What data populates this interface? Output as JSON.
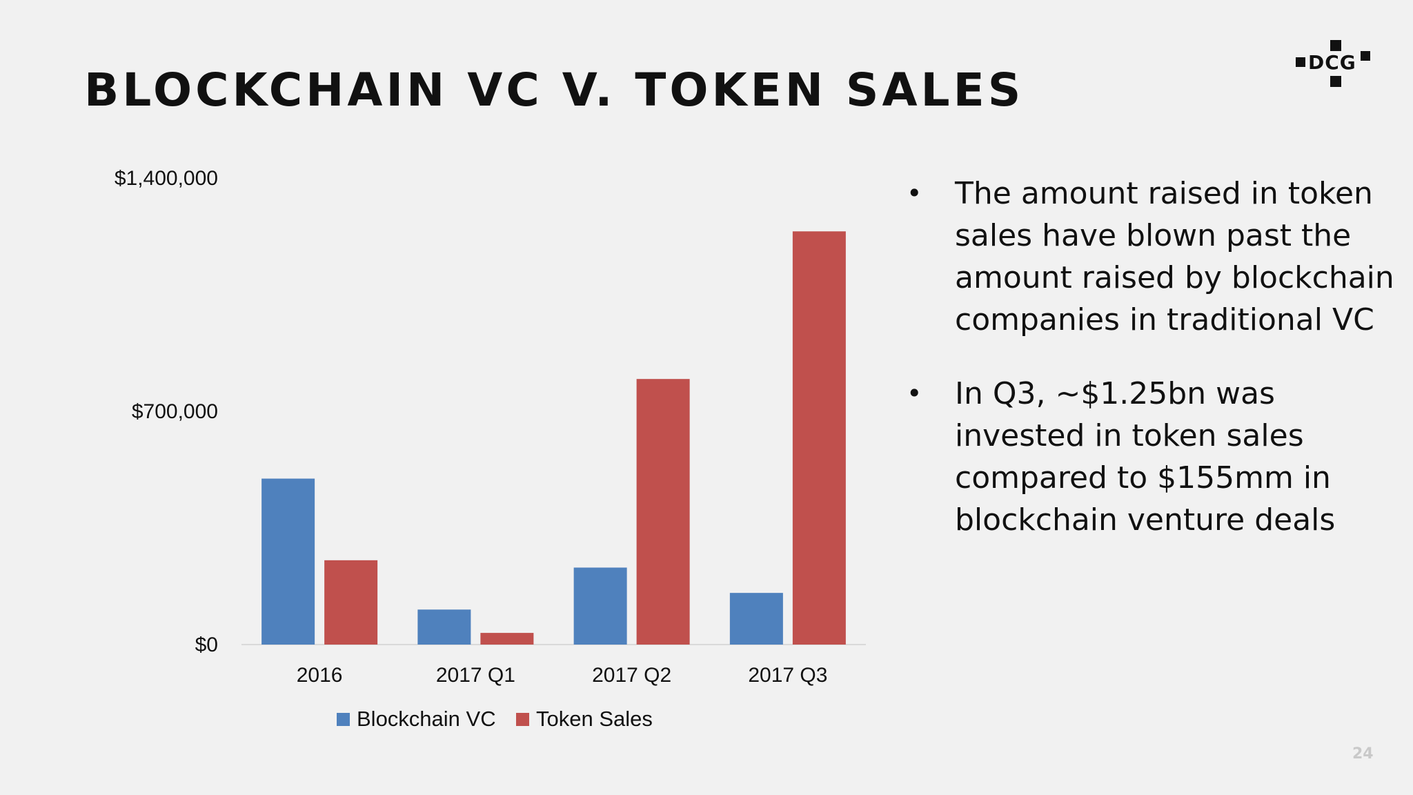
{
  "title": "BLOCKCHAIN VC V. TOKEN SALES",
  "logo": {
    "text": "DCG"
  },
  "page_number": "24",
  "bullets": [
    "The amount raised in token sales have blown past the amount raised by blockchain companies in traditional VC",
    "In Q3, ~$1.25bn was invested in token sales compared to $155mm in blockchain venture deals"
  ],
  "colors": {
    "blockchain_vc": "#4f81bd",
    "token_sales": "#c0504d",
    "text": "#111111",
    "background": "#f1f1f1"
  },
  "chart_data": {
    "type": "bar",
    "title": "",
    "xlabel": "",
    "ylabel": "",
    "categories": [
      "2016",
      "2017 Q1",
      "2017 Q2",
      "2017 Q3"
    ],
    "series": [
      {
        "name": "Blockchain VC",
        "values": [
          498000,
          105000,
          231000,
          155000
        ]
      },
      {
        "name": "Token Sales",
        "values": [
          253000,
          35000,
          797000,
          1240000
        ]
      }
    ],
    "yticks": [
      0,
      700000,
      1400000
    ],
    "ytick_labels": [
      "$0",
      "$700,000",
      "$1,400,000"
    ],
    "ylim": [
      0,
      1400000
    ],
    "grid": false,
    "legend_position": "bottom"
  }
}
